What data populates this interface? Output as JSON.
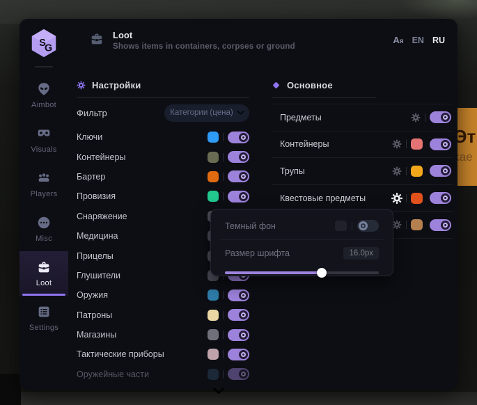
{
  "background": {
    "sign_line1": "Эт",
    "sign_line2": "кае"
  },
  "window": {
    "logo_text": "SG",
    "header": {
      "title": "Loot",
      "subtitle": "Shows items in containers, corpses or ground",
      "translate_icon": "Aя",
      "languages": [
        {
          "label": "EN",
          "active": false
        },
        {
          "label": "RU",
          "active": true
        }
      ]
    }
  },
  "sidebar": {
    "items": [
      {
        "label": "Aimbot",
        "icon": "alien-icon",
        "active": false
      },
      {
        "label": "Visuals",
        "icon": "goggles-icon",
        "active": false
      },
      {
        "label": "Players",
        "icon": "players-icon",
        "active": false
      },
      {
        "label": "Misc",
        "icon": "chat-dots-icon",
        "active": false
      },
      {
        "label": "Loot",
        "icon": "briefcase-icon",
        "active": true
      },
      {
        "label": "Settings",
        "icon": "list-icon",
        "active": false
      }
    ]
  },
  "filters_panel": {
    "title": "Настройки",
    "filter_label": "Фильтр",
    "filter_value": "Категории (цена)",
    "rows": [
      {
        "label": "Ключи",
        "color": "#2e9bf5",
        "on": true,
        "faded": false
      },
      {
        "label": "Контейнеры",
        "color": "#696c52",
        "on": true,
        "faded": false
      },
      {
        "label": "Бартер",
        "color": "#e06a10",
        "on": true,
        "faded": false
      },
      {
        "label": "Провизия",
        "color": "#22c78e",
        "on": true,
        "faded": false
      },
      {
        "label": "Снаряжение",
        "color": "#4a4c56",
        "on": true,
        "faded": false
      },
      {
        "label": "Медицина",
        "color": "#4a4c56",
        "on": true,
        "faded": false
      },
      {
        "label": "Прицелы",
        "color": "#4a4c56",
        "on": true,
        "faded": false
      },
      {
        "label": "Глушители",
        "color": "#4a4c56",
        "on": true,
        "faded": false
      },
      {
        "label": "Оружия",
        "color": "#2e7ca8",
        "on": true,
        "faded": false
      },
      {
        "label": "Патроны",
        "color": "#e9d6a4",
        "on": true,
        "faded": false
      },
      {
        "label": "Магазины",
        "color": "#70707a",
        "on": true,
        "faded": false
      },
      {
        "label": "Тактические приборы",
        "color": "#bfa3ab",
        "on": true,
        "faded": false
      },
      {
        "label": "Оружейные части",
        "color": "#2b4a63",
        "on": true,
        "faded": true
      }
    ]
  },
  "main_panel": {
    "title": "Основное",
    "rows": [
      {
        "label": "Предметы",
        "color": null,
        "gear": true,
        "gear_active": false,
        "on": true
      },
      {
        "label": "Контейнеры",
        "color": "#e57373",
        "gear": true,
        "gear_active": false,
        "on": true
      },
      {
        "label": "Трупы",
        "color": "#f2a71b",
        "gear": true,
        "gear_active": false,
        "on": true
      },
      {
        "label": "Квестовые предметы",
        "color": "#e0511c",
        "gear": true,
        "gear_active": true,
        "on": true
      },
      {
        "label": "",
        "color": "#b5804f",
        "gear": true,
        "gear_active": false,
        "on": true
      }
    ]
  },
  "popup": {
    "dark_bg_label": "Темный фон",
    "dark_bg_on": false,
    "font_size_label": "Размер шрифта",
    "font_size_value": "16.0px",
    "slider_percent": 63
  },
  "colors": {
    "accent": "#8f74ef",
    "toggle_on": "#9d82dc"
  }
}
